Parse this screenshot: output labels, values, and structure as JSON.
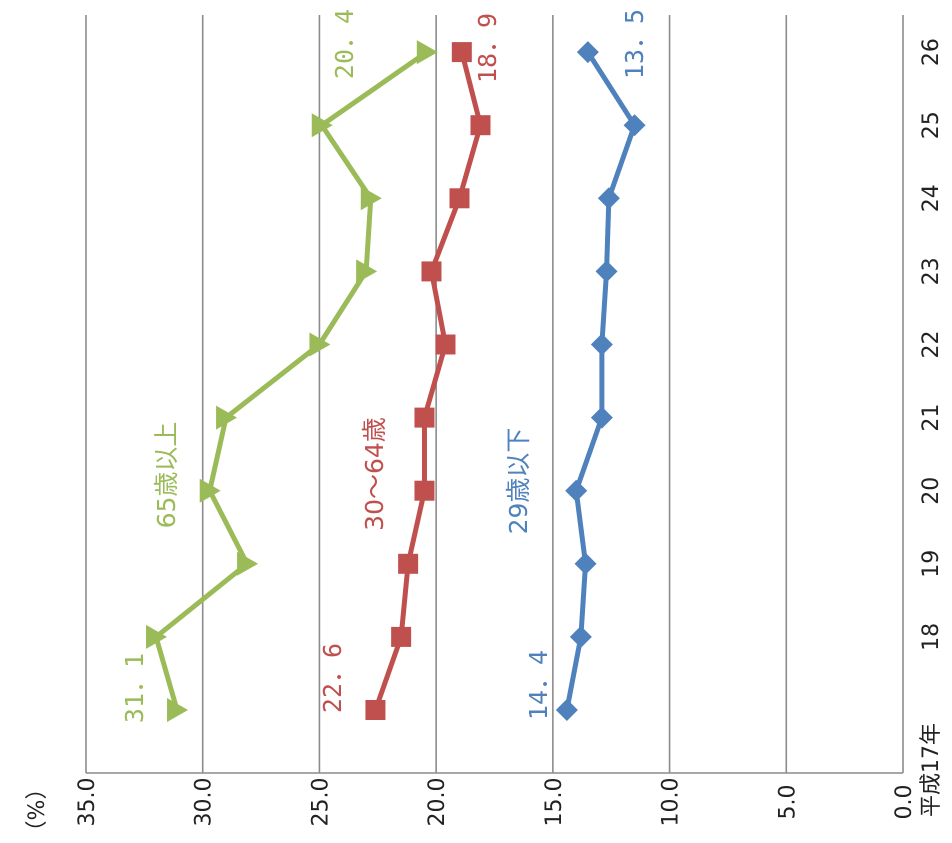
{
  "chart_data": {
    "type": "line",
    "orientation": "rotated-90-clockwise",
    "unit_label": "（%）",
    "categories": [
      "平成17年",
      "18",
      "19",
      "20",
      "21",
      "22",
      "23",
      "24",
      "25",
      "26"
    ],
    "ylim": [
      0,
      35
    ],
    "yticks": [
      "0.0",
      "5.0",
      "10.0",
      "15.0",
      "20.0",
      "25.0",
      "30.0",
      "35.0"
    ],
    "grid": true,
    "series": [
      {
        "name": "65歳以上",
        "color": "#9BBB59",
        "marker": "triangle",
        "values": [
          31.1,
          32.0,
          28.1,
          29.7,
          29.0,
          25.0,
          23.0,
          22.8,
          24.9,
          20.4
        ],
        "start_label": "31．1",
        "end_label": "20．4"
      },
      {
        "name": "30～64歳",
        "color": "#C0504D",
        "marker": "square",
        "values": [
          22.6,
          21.5,
          21.2,
          20.5,
          20.5,
          19.6,
          20.2,
          19.0,
          18.1,
          18.9
        ],
        "start_label": "22．6",
        "end_label": "18．9"
      },
      {
        "name": "29歳以下",
        "color": "#4F81BD",
        "marker": "diamond",
        "values": [
          14.4,
          13.8,
          13.6,
          14.0,
          12.9,
          12.9,
          12.7,
          12.6,
          11.5,
          13.5
        ],
        "start_label": "14．4",
        "end_label": "13．5"
      }
    ]
  }
}
